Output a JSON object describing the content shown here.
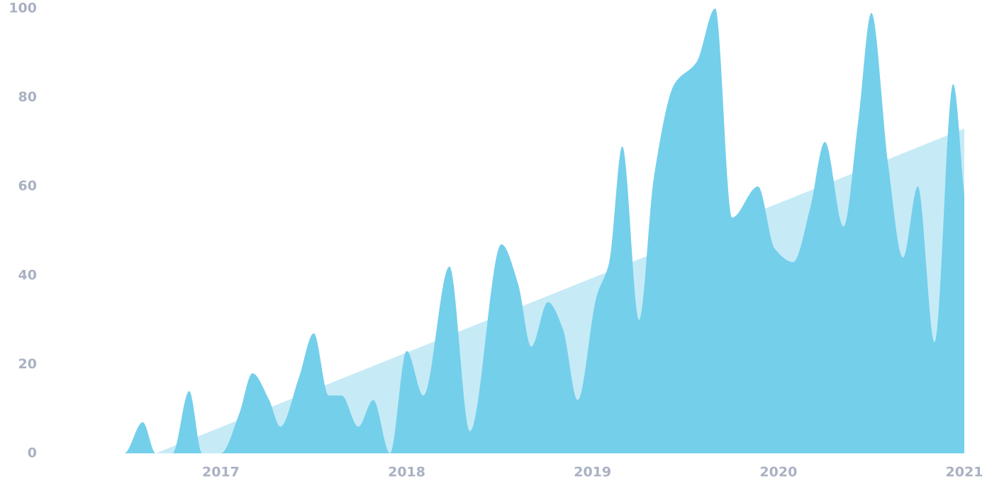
{
  "chart_data": {
    "type": "area",
    "xlim": [
      2016.06,
      2021.0
    ],
    "ylim": [
      0,
      100
    ],
    "xticks": [
      2017,
      2018,
      2019,
      2020,
      2021
    ],
    "yticks": [
      0,
      20,
      40,
      60,
      80,
      100
    ],
    "series": [
      {
        "color": "#c6ebf6",
        "x": [
          2016.65,
          2021.0
        ],
        "values": [
          0,
          73
        ]
      },
      {
        "color": "#74cfeb",
        "x": [
          2016.06,
          2016.48,
          2016.58,
          2016.65,
          2016.74,
          2016.83,
          2016.9,
          2017.0,
          2017.1,
          2017.17,
          2017.26,
          2017.32,
          2017.42,
          2017.5,
          2017.58,
          2017.65,
          2017.74,
          2017.82,
          2017.91,
          2018.0,
          2018.09,
          2018.23,
          2018.34,
          2018.51,
          2018.6,
          2018.67,
          2018.76,
          2018.84,
          2018.92,
          2019.02,
          2019.09,
          2019.16,
          2019.25,
          2019.33,
          2019.44,
          2019.56,
          2019.66,
          2019.75,
          2019.89,
          2019.98,
          2020.08,
          2020.17,
          2020.25,
          2020.35,
          2020.43,
          2020.5,
          2020.59,
          2020.67,
          2020.75,
          2020.84,
          2020.94,
          2021.0
        ],
        "values": [
          0,
          0,
          7,
          0,
          0,
          14,
          0,
          0,
          9,
          18,
          12,
          6,
          17,
          27,
          13,
          13,
          6,
          12,
          0,
          23,
          13,
          42,
          5,
          47,
          38,
          24,
          34,
          28,
          12,
          35,
          43,
          69,
          30,
          62,
          83,
          88,
          100,
          53,
          60,
          46,
          43,
          55,
          70,
          51,
          75,
          99,
          65,
          44,
          60,
          25,
          83,
          58
        ]
      }
    ]
  }
}
